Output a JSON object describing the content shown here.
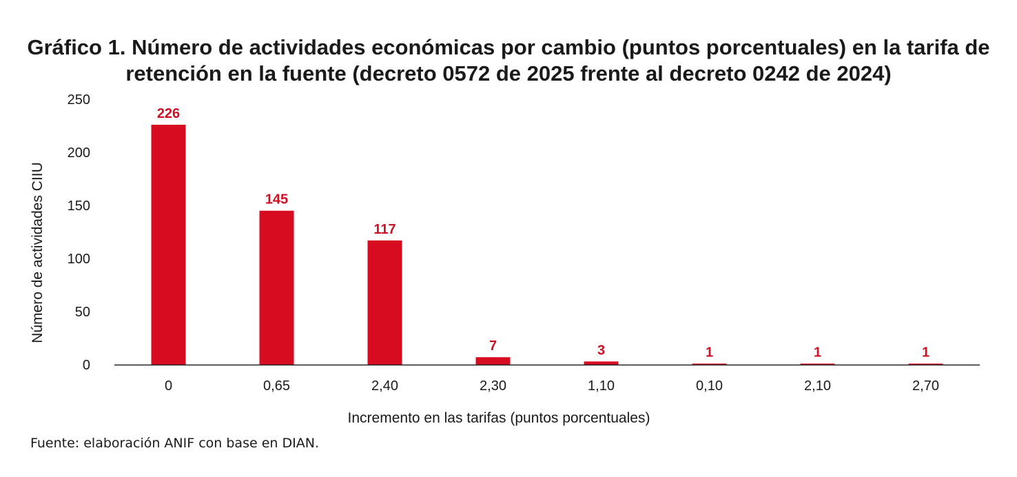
{
  "chart_data": {
    "type": "bar",
    "title": "Gráfico 1. Número de actividades económicas por cambio (puntos porcentuales) en la tarifa de retención en la fuente (decreto 0572 de 2025 frente al decreto 0242 de 2024)",
    "title_lines": [
      "Gráfico 1. Número de actividades económicas por cambio (puntos porcentuales) en la tarifa de",
      "retención en la fuente (decreto 0572 de 2025 frente al decreto 0242 de 2024)"
    ],
    "xlabel": "Incremento en las tarifas (puntos porcentuales)",
    "ylabel": "Número de actividades CIIU",
    "categories": [
      "0",
      "0,65",
      "2,40",
      "2,30",
      "1,10",
      "0,10",
      "2,10",
      "2,70"
    ],
    "values": [
      226,
      145,
      117,
      7,
      3,
      1,
      1,
      1
    ],
    "ylim": [
      0,
      250
    ],
    "yticks": [
      0,
      50,
      100,
      150,
      200,
      250
    ],
    "grid": false,
    "legend": "none",
    "bar_color": "#d70c20",
    "label_color": "#cc1125"
  },
  "source": "Fuente: elaboración ANIF con base en DIAN."
}
